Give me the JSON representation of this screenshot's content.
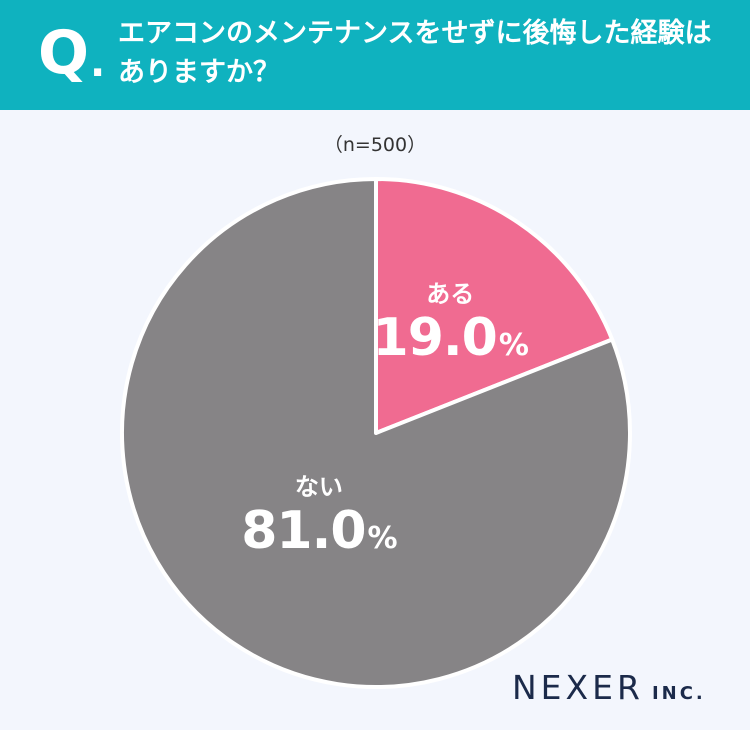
{
  "header": {
    "q_letter": "Q",
    "q_dot": ".",
    "question": "エアコンのメンテナンスをせずに後悔した経験はありますか？"
  },
  "sample_size": "（n=500）",
  "brand": {
    "name": "NEXER",
    "suffix": "INC."
  },
  "colors": {
    "header_bg": "#0fb2bf",
    "yes": "#f06b91",
    "no": "#868486",
    "background": "#f3f6fd"
  },
  "chart_data": {
    "type": "pie",
    "start_angle_deg": 0,
    "direction": "clockwise",
    "slices": [
      {
        "label": "ある",
        "value": 19.0,
        "display": "19.0",
        "unit": "%",
        "color": "#f06b91"
      },
      {
        "label": "ない",
        "value": 81.0,
        "display": "81.0",
        "unit": "%",
        "color": "#868486"
      }
    ]
  }
}
